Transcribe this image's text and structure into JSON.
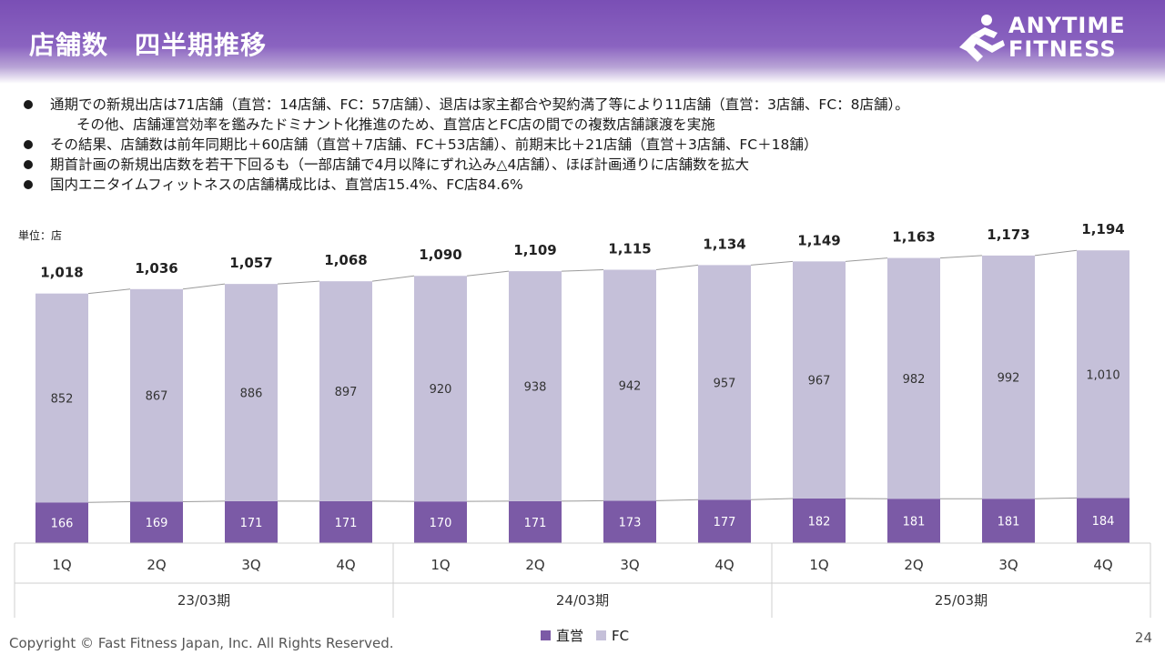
{
  "header": {
    "title": "店舗数　四半期推移",
    "logo_line1": "ANYTIME",
    "logo_line2": "FITNESS"
  },
  "bullets": [
    "通期での新規出店は71店舗（直営：14店舗、FC：57店舗）、退店は家主都合や契約満了等により11店舗（直営：3店舗、FC：8店舗）。",
    "その他、店舗運営効率を鑑みたドミナント化推進のため、直営店とFC店の間での複数店舗譲渡を実施",
    "その結果、店舗数は前年同期比＋60店舗（直営＋7店舗、FC＋53店舗）、前期末比＋21店舗（直営＋3店舗、FC＋18舗）",
    "期首計画の新規出店数を若干下回るも（一部店舗で4月以降にずれ込み△4店舗）、ほぼ計画通りに店舗数を拡大",
    "国内エニタイムフィットネスの店舗構成比は、直営店15.4%、FC店84.6%"
  ],
  "unit_label": "単位：店",
  "chart_data": {
    "type": "bar",
    "stacked": true,
    "categories": [
      "1Q",
      "2Q",
      "3Q",
      "4Q",
      "1Q",
      "2Q",
      "3Q",
      "4Q",
      "1Q",
      "2Q",
      "3Q",
      "4Q"
    ],
    "groups": [
      {
        "label": "23/03期",
        "count": 4
      },
      {
        "label": "24/03期",
        "count": 4
      },
      {
        "label": "25/03期",
        "count": 4
      }
    ],
    "series": [
      {
        "name": "直営",
        "color": "#7b5aa6",
        "values": [
          166,
          169,
          171,
          171,
          170,
          171,
          173,
          177,
          182,
          181,
          181,
          184
        ]
      },
      {
        "name": "FC",
        "color": "#c5c0d9",
        "values": [
          852,
          867,
          886,
          897,
          920,
          938,
          942,
          957,
          967,
          982,
          992,
          1010
        ]
      }
    ],
    "totals": [
      1018,
      1036,
      1057,
      1068,
      1090,
      1109,
      1115,
      1134,
      1149,
      1163,
      1173,
      1194
    ],
    "total_labels": [
      "1,018",
      "1,036",
      "1,057",
      "1,068",
      "1,090",
      "1,109",
      "1,115",
      "1,134",
      "1,149",
      "1,163",
      "1,173",
      "1,194"
    ],
    "fc_labels": [
      "852",
      "867",
      "886",
      "897",
      "920",
      "938",
      "942",
      "957",
      "967",
      "982",
      "992",
      "1,010"
    ],
    "direct_labels": [
      "166",
      "169",
      "171",
      "171",
      "170",
      "171",
      "173",
      "177",
      "182",
      "181",
      "181",
      "184"
    ],
    "ylim": [
      0,
      1250
    ],
    "legend_position": "bottom",
    "grid": false
  },
  "footer": {
    "copyright": "Copyright © Fast Fitness Japan, Inc. All Rights Reserved.",
    "page_number": "24"
  }
}
